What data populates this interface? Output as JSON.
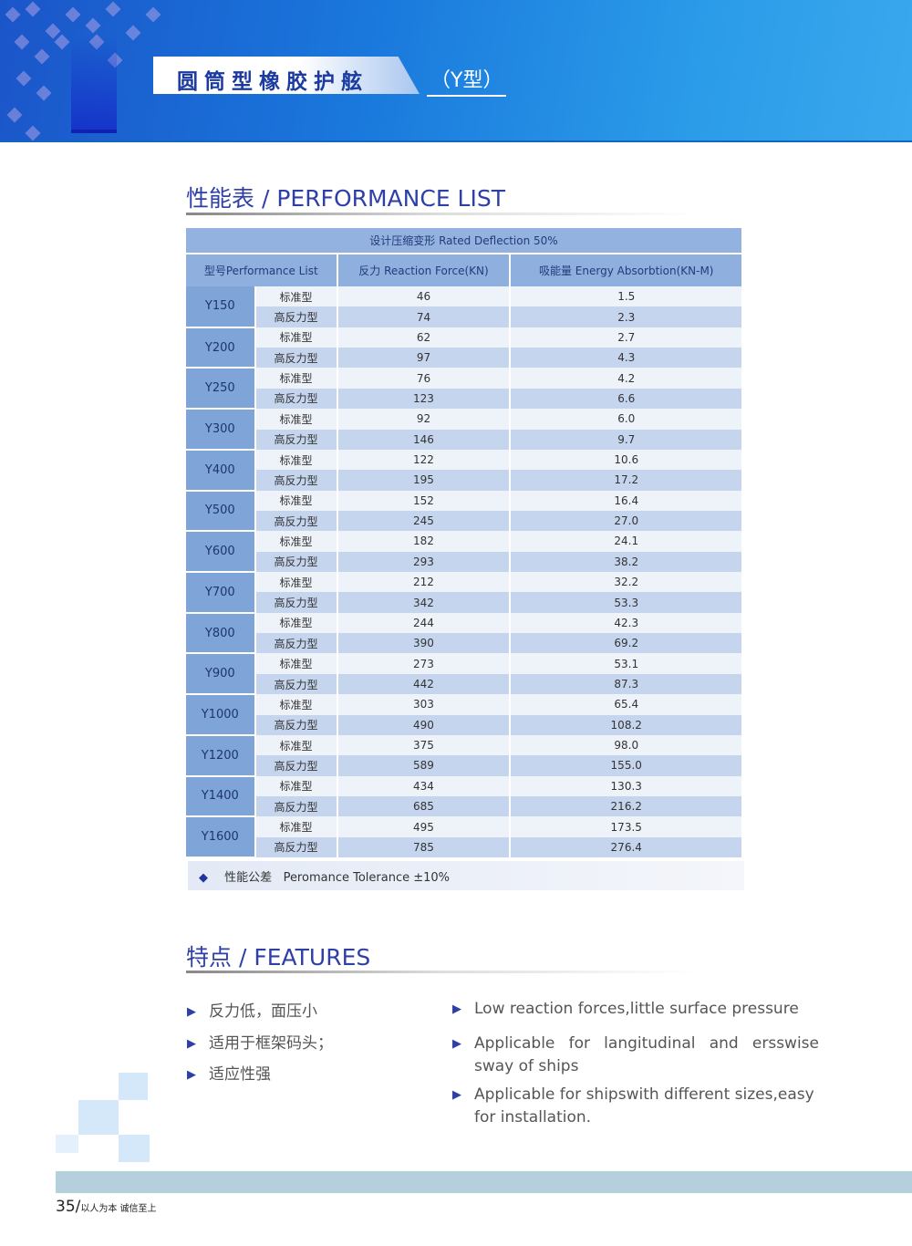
{
  "header": {
    "title": "圆筒型橡胶护舷",
    "subtitle": "（Y型）"
  },
  "performance": {
    "section_title": "性能表 / PERFORMANCE LIST",
    "deflection_header": "设计压缩变形 Rated Deflection 50%",
    "columns": [
      "型号Performance List",
      "反力 Reaction Force(KN)",
      "吸能量 Energy Absorbtion(KN-M)"
    ],
    "rows": [
      {
        "model": "Y150",
        "std": {
          "type": "标准型",
          "force": "46",
          "energy": "1.5"
        },
        "hi": {
          "type": "高反力型",
          "force": "74",
          "energy": "2.3"
        }
      },
      {
        "model": "Y200",
        "std": {
          "type": "标准型",
          "force": "62",
          "energy": "2.7"
        },
        "hi": {
          "type": "高反力型",
          "force": "97",
          "energy": "4.3"
        }
      },
      {
        "model": "Y250",
        "std": {
          "type": "标准型",
          "force": "76",
          "energy": "4.2"
        },
        "hi": {
          "type": "高反力型",
          "force": "123",
          "energy": "6.6"
        }
      },
      {
        "model": "Y300",
        "std": {
          "type": "标准型",
          "force": "92",
          "energy": "6.0"
        },
        "hi": {
          "type": "高反力型",
          "force": "146",
          "energy": "9.7"
        }
      },
      {
        "model": "Y400",
        "std": {
          "type": "标准型",
          "force": "122",
          "energy": "10.6"
        },
        "hi": {
          "type": "高反力型",
          "force": "195",
          "energy": "17.2"
        }
      },
      {
        "model": "Y500",
        "std": {
          "type": "标准型",
          "force": "152",
          "energy": "16.4"
        },
        "hi": {
          "type": "高反力型",
          "force": "245",
          "energy": "27.0"
        }
      },
      {
        "model": "Y600",
        "std": {
          "type": "标准型",
          "force": "182",
          "energy": "24.1"
        },
        "hi": {
          "type": "高反力型",
          "force": "293",
          "energy": "38.2"
        }
      },
      {
        "model": "Y700",
        "std": {
          "type": "标准型",
          "force": "212",
          "energy": "32.2"
        },
        "hi": {
          "type": "高反力型",
          "force": "342",
          "energy": "53.3"
        }
      },
      {
        "model": "Y800",
        "std": {
          "type": "标准型",
          "force": "244",
          "energy": "42.3"
        },
        "hi": {
          "type": "高反力型",
          "force": "390",
          "energy": "69.2"
        }
      },
      {
        "model": "Y900",
        "std": {
          "type": "标准型",
          "force": "273",
          "energy": "53.1"
        },
        "hi": {
          "type": "高反力型",
          "force": "442",
          "energy": "87.3"
        }
      },
      {
        "model": "Y1000",
        "std": {
          "type": "标准型",
          "force": "303",
          "energy": "65.4"
        },
        "hi": {
          "type": "高反力型",
          "force": "490",
          "energy": "108.2"
        }
      },
      {
        "model": "Y1200",
        "std": {
          "type": "标准型",
          "force": "375",
          "energy": "98.0"
        },
        "hi": {
          "type": "高反力型",
          "force": "589",
          "energy": "155.0"
        }
      },
      {
        "model": "Y1400",
        "std": {
          "type": "标准型",
          "force": "434",
          "energy": "130.3"
        },
        "hi": {
          "type": "高反力型",
          "force": "685",
          "energy": "216.2"
        }
      },
      {
        "model": "Y1600",
        "std": {
          "type": "标准型",
          "force": "495",
          "energy": "173.5"
        },
        "hi": {
          "type": "高反力型",
          "force": "785",
          "energy": "276.4"
        }
      }
    ],
    "tolerance_cn": "性能公差",
    "tolerance_en": "Peromance Tolerance ±10%"
  },
  "features": {
    "section_title": "特点 / FEATURES",
    "cn": [
      "反力低，面压小",
      "适用于框架码头；",
      "适应性强"
    ],
    "en": [
      "Low reaction forces,little surface pressure",
      "Applicable for langitudinal and ersswise sway of ships",
      "Applicable for shipswith different sizes,easy for installation."
    ]
  },
  "footer": {
    "page": "35/",
    "slogan": "以人为本 诚信至上"
  },
  "colors": {
    "accent": "#2e3fa8",
    "header_cell": "#8fafde",
    "model_cell": "#7ea4d8",
    "alt_row": "#c6d5ee"
  }
}
